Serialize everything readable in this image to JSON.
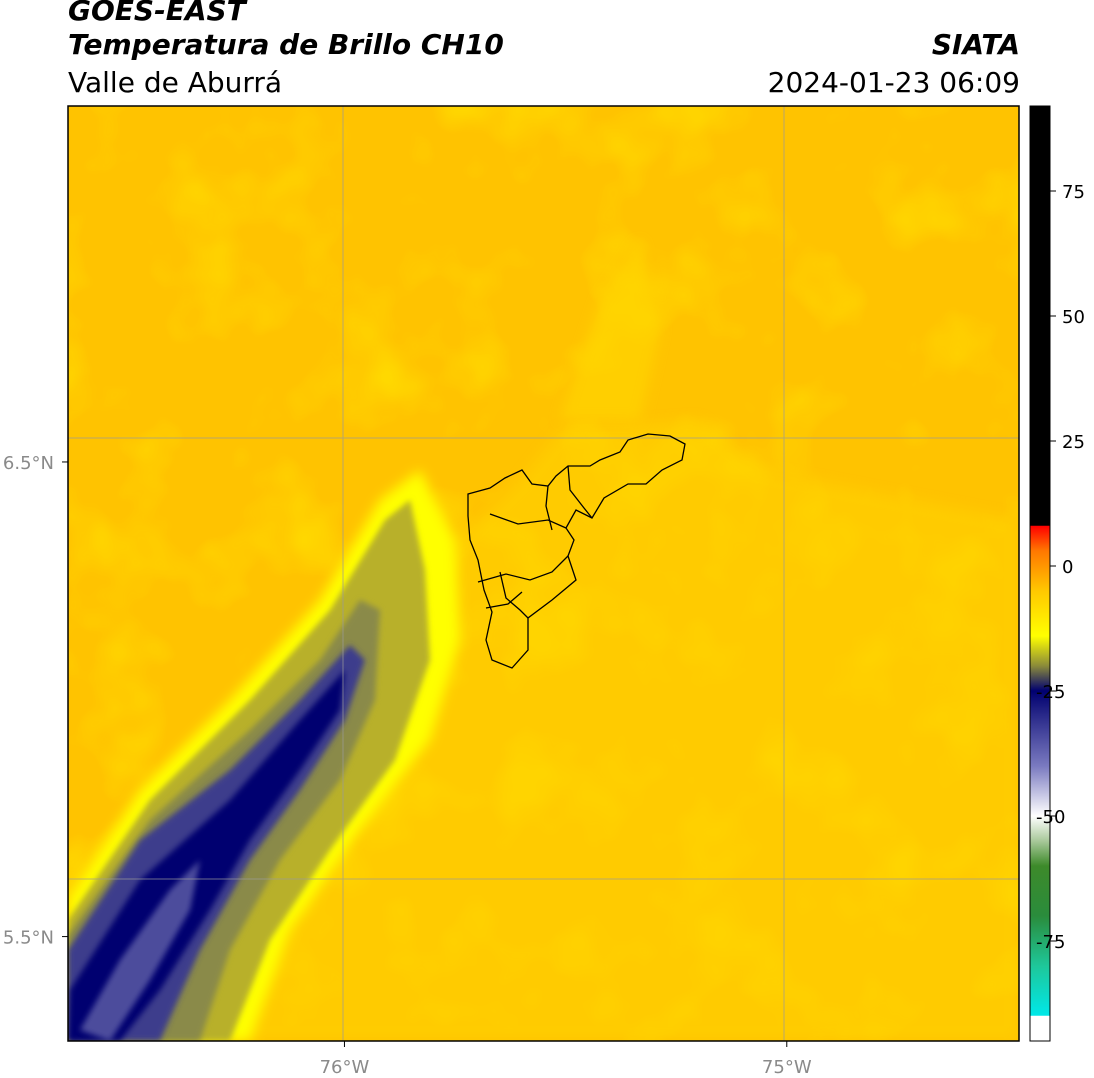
{
  "header": {
    "satellite": "GOES-EAST",
    "product": "Temperatura de Brillo CH10",
    "region": "Valle de Aburrá",
    "agency": "SIATA",
    "timestamp": "2024-01-23 06:09"
  },
  "map": {
    "lon_labels": [
      {
        "value": -76.0,
        "text": "76°W"
      },
      {
        "value": -75.0,
        "text": "75°W"
      }
    ],
    "lat_labels": [
      {
        "value": 6.5,
        "text": "6.5°N"
      },
      {
        "value": 5.5,
        "text": "5.5°N"
      }
    ],
    "lon_range": [
      -76.625,
      -74.475
    ],
    "lat_range": [
      5.28,
      7.25
    ],
    "colors": {
      "background_field": "#ffc300",
      "secondary_field": "#ffd700",
      "cold_core": "#000070",
      "boundary": "#000000",
      "gridline": "#9a9a9a"
    }
  },
  "colorbar": {
    "range": [
      -95,
      92
    ],
    "ticks": [
      {
        "value": 75,
        "text": "75"
      },
      {
        "value": 50,
        "text": "50"
      },
      {
        "value": 25,
        "text": "25"
      },
      {
        "value": 0,
        "text": "0"
      },
      {
        "value": -25,
        "text": "-25"
      },
      {
        "value": -50,
        "text": "-50"
      },
      {
        "value": -75,
        "text": "-75"
      }
    ],
    "stops": [
      {
        "value": -95,
        "color": "#ffffff"
      },
      {
        "value": -90,
        "color": "#ffffff"
      },
      {
        "value": -89.9,
        "color": "#00e8e8"
      },
      {
        "value": -80,
        "color": "#1ec79a"
      },
      {
        "value": -70,
        "color": "#2a8c3c"
      },
      {
        "value": -60,
        "color": "#3d8a2a"
      },
      {
        "value": -55,
        "color": "#a8c89a"
      },
      {
        "value": -50,
        "color": "#ffffff"
      },
      {
        "value": -40,
        "color": "#7a7ac0"
      },
      {
        "value": -30,
        "color": "#2a2a8a"
      },
      {
        "value": -25,
        "color": "#000070"
      },
      {
        "value": -20,
        "color": "#8a8a3a"
      },
      {
        "value": -14,
        "color": "#ffff00"
      },
      {
        "value": -5,
        "color": "#ffc800"
      },
      {
        "value": 3,
        "color": "#ff7800"
      },
      {
        "value": 8,
        "color": "#ff0000"
      },
      {
        "value": 8.1,
        "color": "#000000"
      },
      {
        "value": 92,
        "color": "#000000"
      }
    ]
  }
}
